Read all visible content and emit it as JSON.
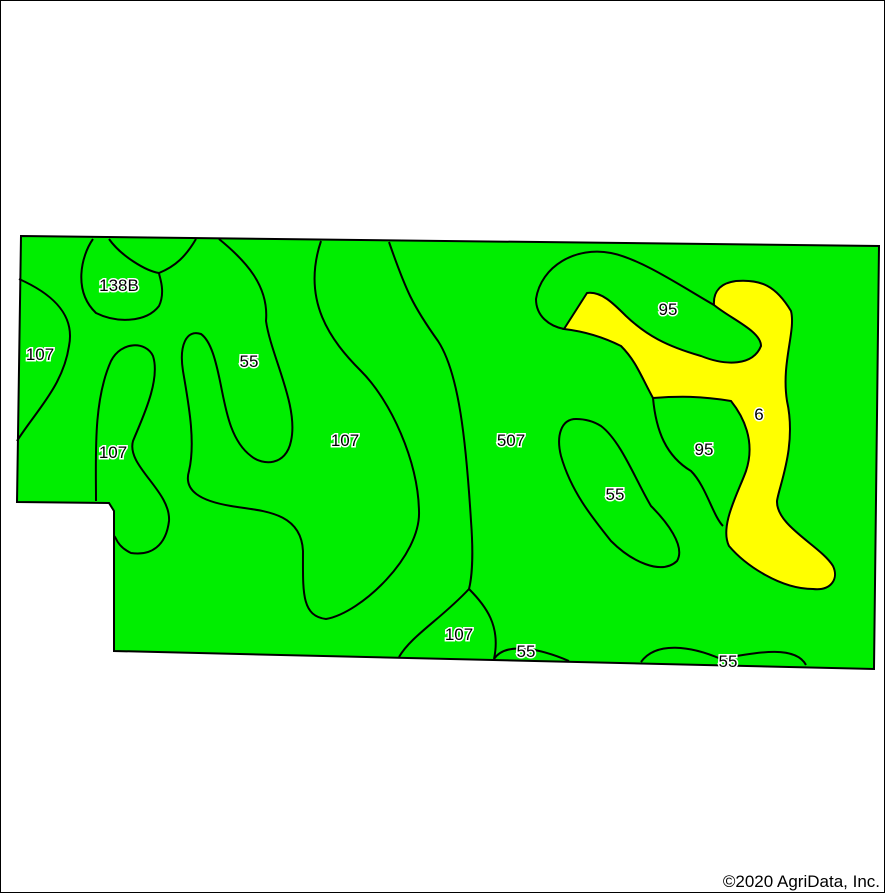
{
  "map": {
    "colors": {
      "green_fill": "#00ee00",
      "yellow_fill": "#ffff00",
      "outline": "#000000",
      "background": "#ffffff"
    },
    "soil_labels": {
      "l138b": "138B",
      "l107_west": "107",
      "l107_southwest": "107",
      "l55_northwest": "55",
      "l107_center": "107",
      "l507": "507",
      "l95_north": "95",
      "l6": "6",
      "l95_east": "95",
      "l55_east": "55",
      "l107_south": "107",
      "l55_south": "55",
      "l55_southeast": "55"
    },
    "copyright": "©2020 AgriData, Inc."
  }
}
